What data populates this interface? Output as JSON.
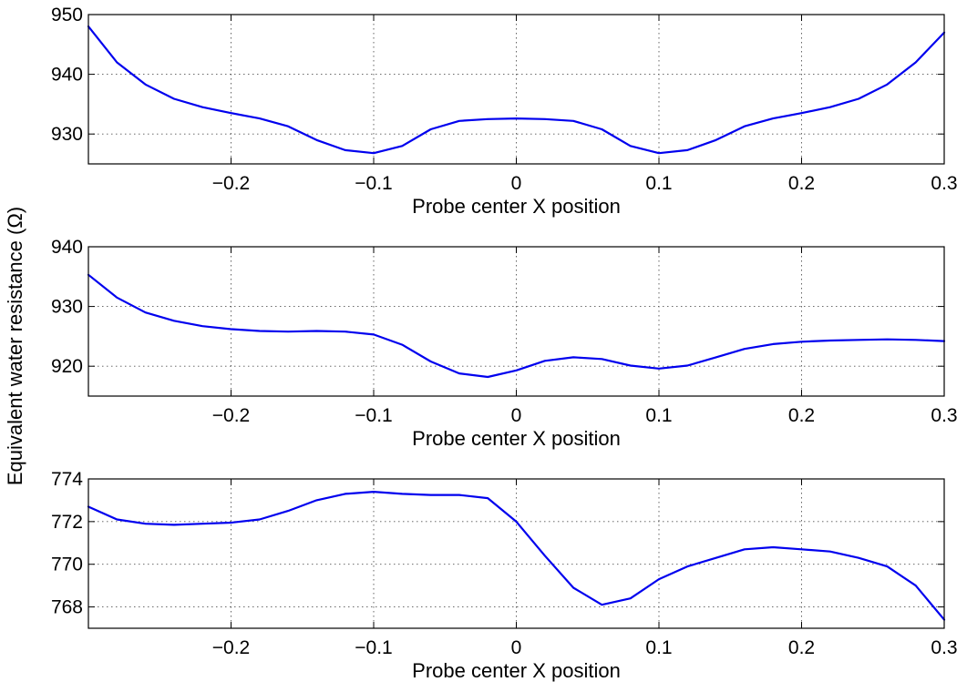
{
  "figure": {
    "ylabel": "Equivalent water resistance (Ω)"
  },
  "colors": {
    "series": "#0000ee",
    "grid": "#555555",
    "frame": "#000000"
  },
  "chart_data": [
    {
      "type": "line",
      "xlabel": "Probe center X position",
      "xlim": [
        -0.3,
        0.3
      ],
      "ylim": [
        925,
        950
      ],
      "xticks": [
        -0.2,
        -0.1,
        0,
        0.1,
        0.2,
        0.3
      ],
      "xtick_labels": [
        "−0.2",
        "−0.1",
        "0",
        "0.1",
        "0.2",
        "0.3"
      ],
      "yticks": [
        930,
        940,
        950
      ],
      "ytick_labels": [
        "930",
        "940",
        "950"
      ],
      "grid": true,
      "series": [
        {
          "x": [
            -0.3,
            -0.28,
            -0.26,
            -0.24,
            -0.22,
            -0.2,
            -0.18,
            -0.16,
            -0.14,
            -0.12,
            -0.1,
            -0.08,
            -0.06,
            -0.04,
            -0.02,
            0,
            0.02,
            0.04,
            0.06,
            0.08,
            0.1,
            0.12,
            0.14,
            0.16,
            0.18,
            0.2,
            0.22,
            0.24,
            0.26,
            0.28,
            0.3
          ],
          "y": [
            948,
            942,
            938.3,
            935.9,
            934.5,
            933.5,
            932.6,
            931.3,
            929.0,
            927.3,
            926.8,
            928.0,
            930.8,
            932.2,
            932.5,
            932.6,
            932.5,
            932.2,
            930.8,
            928.0,
            926.8,
            927.3,
            929.0,
            931.3,
            932.6,
            933.5,
            934.5,
            935.9,
            938.3,
            942,
            947
          ]
        }
      ]
    },
    {
      "type": "line",
      "xlabel": "Probe center X position",
      "xlim": [
        -0.3,
        0.3
      ],
      "ylim": [
        915,
        940
      ],
      "xticks": [
        -0.2,
        -0.1,
        0,
        0.1,
        0.2,
        0.3
      ],
      "xtick_labels": [
        "−0.2",
        "−0.1",
        "0",
        "0.1",
        "0.2",
        "0.3"
      ],
      "yticks": [
        920,
        930,
        940
      ],
      "ytick_labels": [
        "920",
        "930",
        "940"
      ],
      "grid": true,
      "series": [
        {
          "x": [
            -0.3,
            -0.28,
            -0.26,
            -0.24,
            -0.22,
            -0.2,
            -0.18,
            -0.16,
            -0.14,
            -0.12,
            -0.1,
            -0.08,
            -0.06,
            -0.04,
            -0.02,
            0,
            0.02,
            0.04,
            0.06,
            0.08,
            0.1,
            0.12,
            0.14,
            0.16,
            0.18,
            0.2,
            0.22,
            0.24,
            0.26,
            0.28,
            0.3
          ],
          "y": [
            935.3,
            931.5,
            929.0,
            927.6,
            926.7,
            926.2,
            925.9,
            925.8,
            925.9,
            925.8,
            925.3,
            923.6,
            920.8,
            918.8,
            918.2,
            919.3,
            920.9,
            921.5,
            921.2,
            920.1,
            919.6,
            920.1,
            921.5,
            922.9,
            923.7,
            924.1,
            924.3,
            924.4,
            924.5,
            924.4,
            924.2
          ]
        }
      ]
    },
    {
      "type": "line",
      "xlabel": "Probe center X position",
      "xlim": [
        -0.3,
        0.3
      ],
      "ylim": [
        767,
        774
      ],
      "xticks": [
        -0.2,
        -0.1,
        0,
        0.1,
        0.2,
        0.3
      ],
      "xtick_labels": [
        "−0.2",
        "−0.1",
        "0",
        "0.1",
        "0.2",
        "0.3"
      ],
      "yticks": [
        768,
        770,
        772,
        774
      ],
      "ytick_labels": [
        "768",
        "770",
        "772",
        "774"
      ],
      "grid": true,
      "series": [
        {
          "x": [
            -0.3,
            -0.28,
            -0.26,
            -0.24,
            -0.22,
            -0.2,
            -0.18,
            -0.16,
            -0.14,
            -0.12,
            -0.1,
            -0.08,
            -0.06,
            -0.04,
            -0.02,
            0,
            0.02,
            0.04,
            0.06,
            0.08,
            0.1,
            0.12,
            0.14,
            0.16,
            0.18,
            0.2,
            0.22,
            0.24,
            0.26,
            0.28,
            0.3
          ],
          "y": [
            772.7,
            772.1,
            771.9,
            771.85,
            771.9,
            771.95,
            772.1,
            772.5,
            773.0,
            773.3,
            773.4,
            773.3,
            773.25,
            773.25,
            773.1,
            772.0,
            770.4,
            768.9,
            768.1,
            768.4,
            769.3,
            769.9,
            770.3,
            770.7,
            770.8,
            770.7,
            770.6,
            770.3,
            769.9,
            769.0,
            767.4
          ]
        }
      ]
    }
  ]
}
